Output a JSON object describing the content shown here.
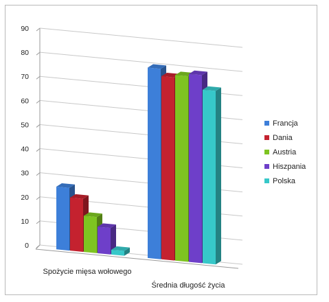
{
  "chart_data": {
    "type": "bar",
    "title": "",
    "xlabel": "",
    "ylabel": "",
    "ylim": [
      0,
      90
    ],
    "yticks": [
      0,
      10,
      20,
      30,
      40,
      50,
      60,
      70,
      80,
      90
    ],
    "grid": true,
    "legend_position": "right",
    "categories": [
      "Spożycie mięsa wołowego",
      "Średnia długość życia"
    ],
    "series": [
      {
        "name": "Francja",
        "values": [
          26,
          79
        ],
        "color": "#3d7fd9"
      },
      {
        "name": "Dania",
        "values": [
          22,
          76
        ],
        "color": "#c4222f"
      },
      {
        "name": "Austria",
        "values": [
          15,
          77
        ],
        "color": "#7ec421"
      },
      {
        "name": "Hiszpania",
        "values": [
          11,
          78
        ],
        "color": "#6e3fc9"
      },
      {
        "name": "Polska",
        "values": [
          2,
          72
        ],
        "color": "#37c8c9"
      }
    ]
  }
}
